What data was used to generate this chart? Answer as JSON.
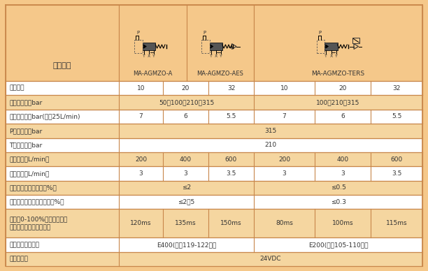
{
  "bg_color": "#F5C88A",
  "header_bg": "#F5C88A",
  "white_row_bg": "#FFFFFF",
  "orange_row_bg": "#F5D9A8",
  "border_color": "#D4935A",
  "text_color": "#333333",
  "rows": [
    {
      "label": "规格尺寸",
      "values": [
        "10",
        "20",
        "32",
        "10",
        "20",
        "32"
      ],
      "merge": false,
      "bg": "white"
    },
    {
      "label": "最大调节压力bar",
      "values": [
        "50；100；210；315",
        "100；210；315"
      ],
      "merge": true,
      "bg": "orange",
      "spans": [
        3,
        3
      ]
    },
    {
      "label": "最小调节压力bar(流量25L/min)",
      "values": [
        "7",
        "6",
        "5.5",
        "7",
        "6",
        "5.5"
      ],
      "merge": false,
      "bg": "white"
    },
    {
      "label": "P口最大压力bar",
      "values": [
        "315"
      ],
      "merge": true,
      "bg": "orange",
      "spans": [
        6
      ]
    },
    {
      "label": "T口最大压力bar",
      "values": [
        "210"
      ],
      "merge": true,
      "bg": "white",
      "spans": [
        6
      ]
    },
    {
      "label": "最大流量（L/min）",
      "values": [
        "200",
        "400",
        "600",
        "200",
        "400",
        "600"
      ],
      "merge": false,
      "bg": "orange"
    },
    {
      "label": "最小流量（L/min）",
      "values": [
        "3",
        "3",
        "3.5",
        "3",
        "3",
        "3.5"
      ],
      "merge": false,
      "bg": "white"
    },
    {
      "label": "滞环（最大被调压力的%）",
      "values": [
        "≤2",
        "≤0.5"
      ],
      "merge": true,
      "bg": "orange",
      "spans": [
        3,
        3
      ]
    },
    {
      "label": "重复精度（最大被调压力的%）",
      "values": [
        "≤2．5",
        "≤0.3"
      ],
      "merge": true,
      "bg": "white",
      "spans": [
        3,
        3
      ]
    },
    {
      "label": "信号从0-100%变化时的响应\n时间（取决于测试条件）",
      "values": [
        "120ms",
        "135ms",
        "150ms",
        "80ms",
        "100ms",
        "115ms"
      ],
      "merge": false,
      "bg": "orange"
    },
    {
      "label": "放大器类型及插头",
      "values": [
        "E400(详见119-122页）",
        "E200(详见105-110页）"
      ],
      "merge": true,
      "bg": "white",
      "spans": [
        3,
        3
      ]
    },
    {
      "label": "放大器电源",
      "values": [
        "24VDC"
      ],
      "merge": true,
      "bg": "orange",
      "spans": [
        6
      ]
    }
  ]
}
